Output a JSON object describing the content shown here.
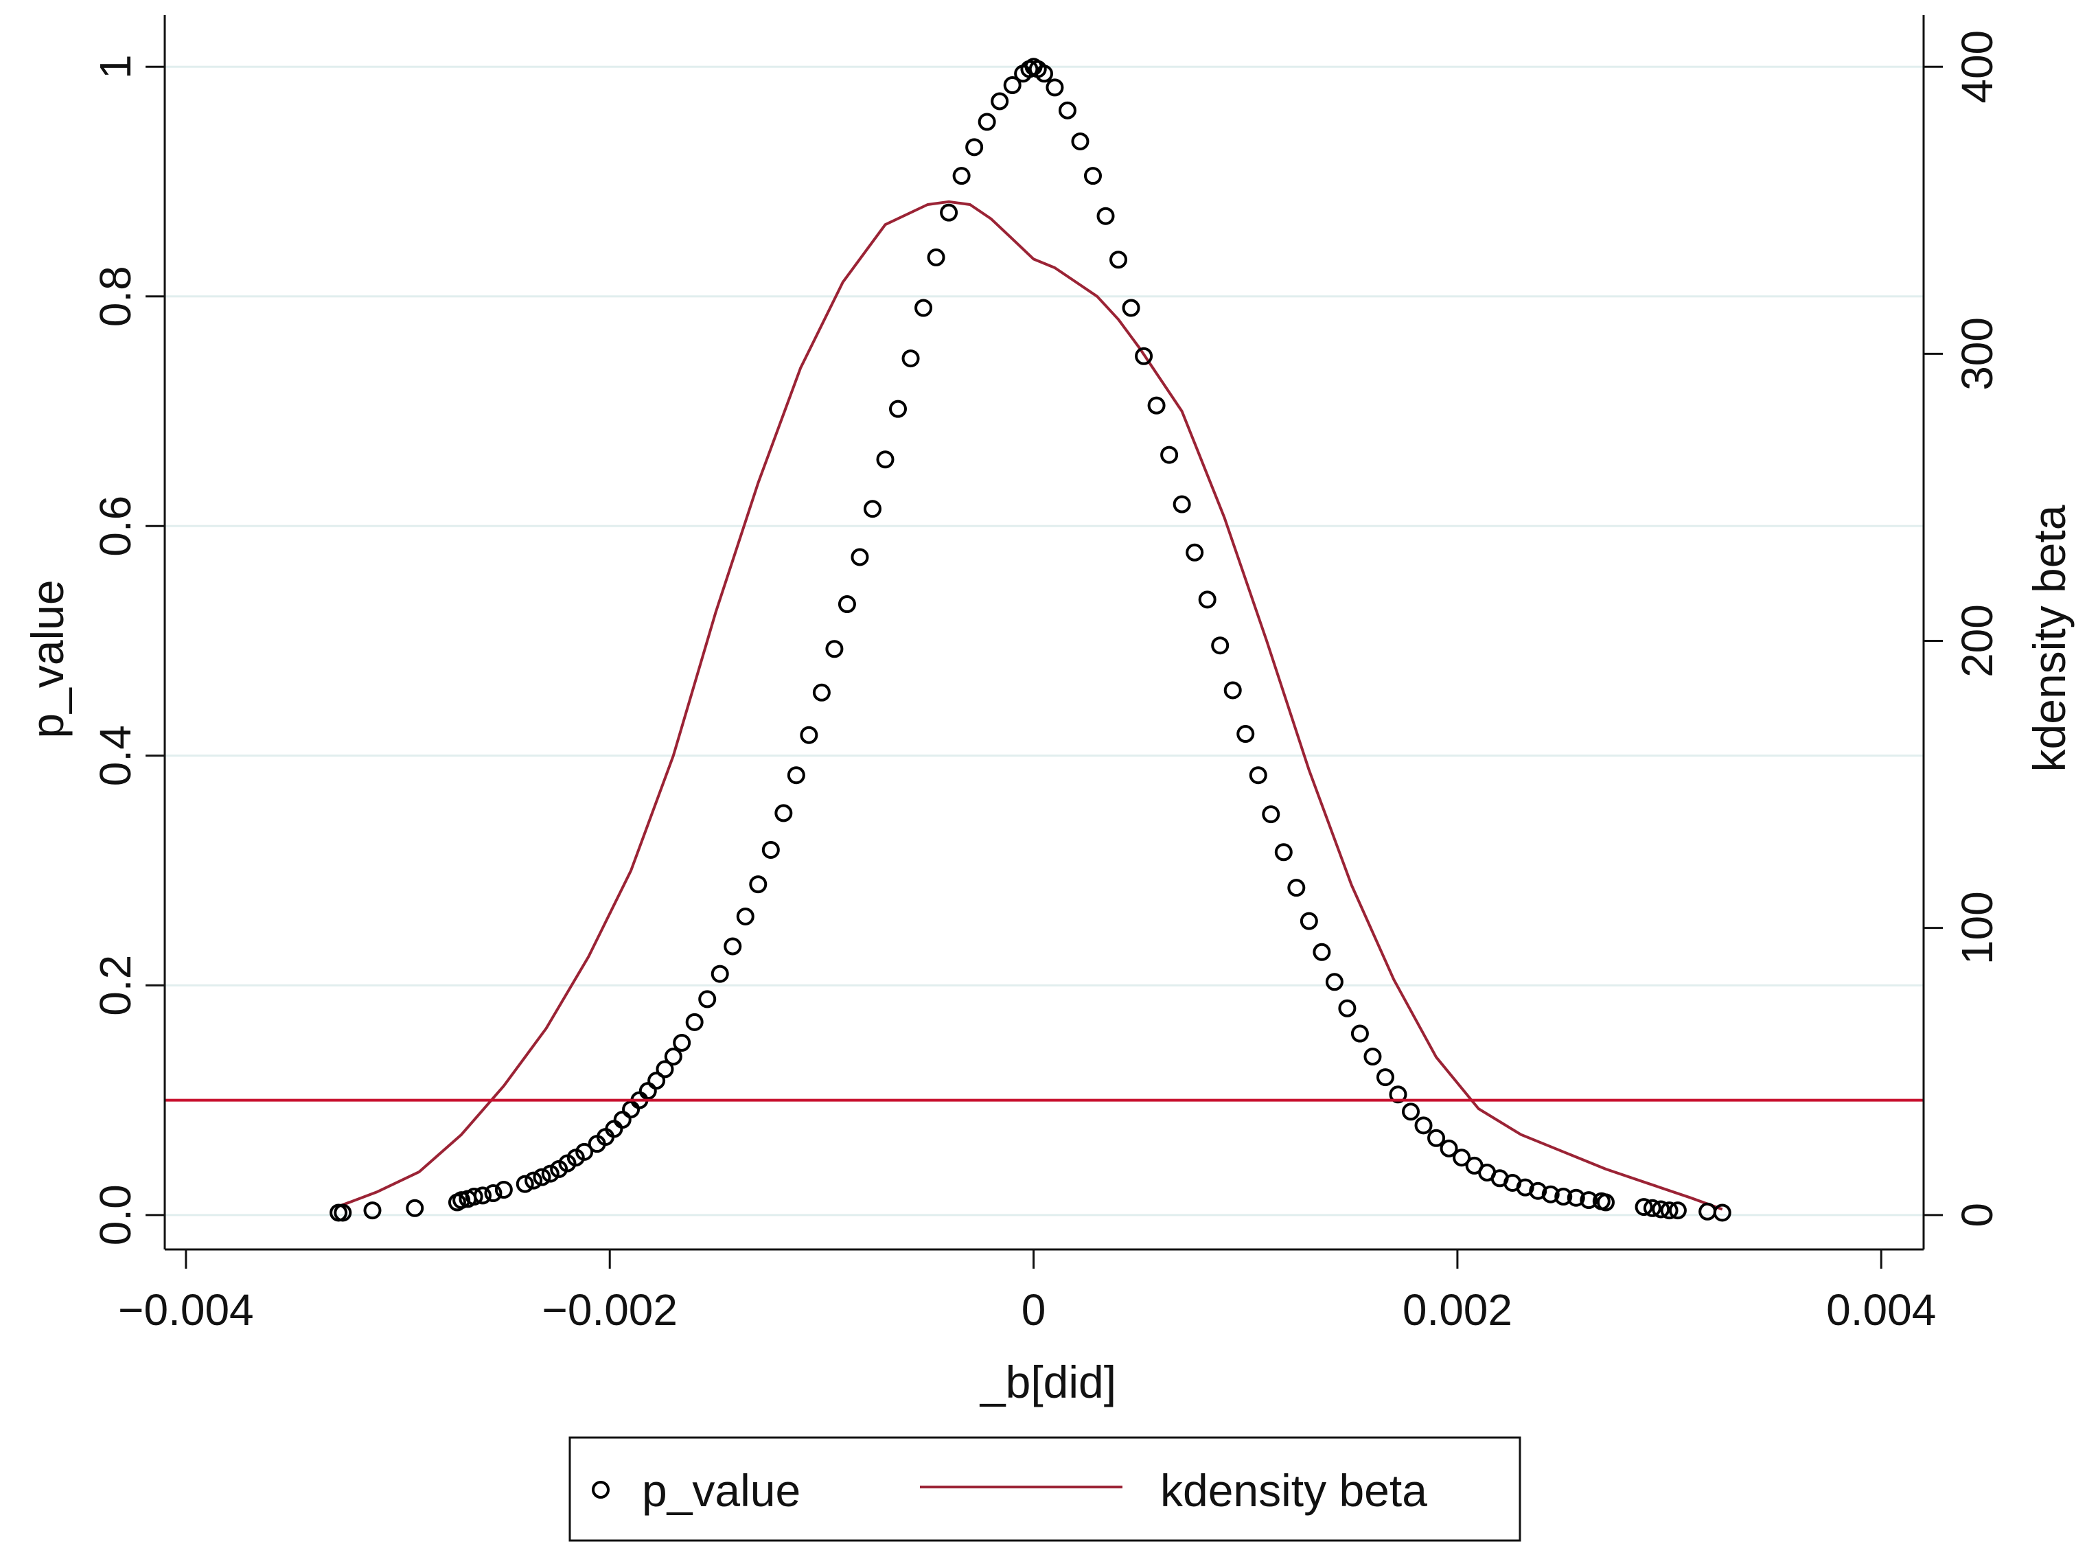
{
  "chart_data": {
    "type": "scatter",
    "xlabel": "_b[did]",
    "ylabel_left": "p_value",
    "ylabel_right": "kdensity beta",
    "xlim": [
      -0.0041,
      0.0042
    ],
    "ylim_left": [
      -0.03,
      1.045
    ],
    "ylim_right": [
      -12,
      418
    ],
    "x_ticks": [
      -0.004,
      -0.002,
      0,
      0.002,
      0.004
    ],
    "x_tick_labels": [
      "−0.004",
      "−0.002",
      "0",
      "0.002",
      "0.004"
    ],
    "y_left_ticks": [
      0,
      0.2,
      0.4,
      0.6,
      0.8,
      1
    ],
    "y_left_tick_labels": [
      "0.0",
      "0.2",
      "0.4",
      "0.6",
      "0.8",
      "1"
    ],
    "y_right_ticks": [
      0,
      100,
      200,
      300,
      400
    ],
    "y_right_tick_labels": [
      "0",
      "100",
      "200",
      "300",
      "400"
    ],
    "grid": "horizontal at left-axis ticks",
    "reference_line": {
      "axis": "left",
      "y": 0.1,
      "color": "#c8102e"
    },
    "colors": {
      "p_value_marker": "#000000",
      "kdensity_line": "#9b2335",
      "gridline": "#e1eeee",
      "frame": "#111111"
    },
    "legend": {
      "position": "bottom-center",
      "entries": [
        "p_value",
        "kdensity beta"
      ]
    },
    "series": [
      {
        "name": "p_value",
        "axis": "left",
        "marker": "hollow-circle",
        "x": [
          -0.00328,
          -0.00326,
          -0.00312,
          -0.00292,
          -0.00272,
          -0.0027,
          -0.00267,
          -0.00264,
          -0.0026,
          -0.00255,
          -0.0025,
          -0.0024,
          -0.00236,
          -0.00232,
          -0.00228,
          -0.00224,
          -0.0022,
          -0.00216,
          -0.00212,
          -0.00206,
          -0.00202,
          -0.00198,
          -0.00194,
          -0.0019,
          -0.00186,
          -0.00182,
          -0.00178,
          -0.00174,
          -0.0017,
          -0.00166,
          -0.0016,
          -0.00154,
          -0.00148,
          -0.00142,
          -0.00136,
          -0.0013,
          -0.00124,
          -0.00118,
          -0.00112,
          -0.00106,
          -0.001,
          -0.00094,
          -0.00088,
          -0.00082,
          -0.00076,
          -0.0007,
          -0.00064,
          -0.00058,
          -0.00052,
          -0.00046,
          -0.0004,
          -0.00034,
          -0.00028,
          -0.00022,
          -0.00016,
          -0.0001,
          -5e-05,
          -2e-05,
          0,
          2e-05,
          5e-05,
          0.0001,
          0.00016,
          0.00022,
          0.00028,
          0.00034,
          0.0004,
          0.00046,
          0.00052,
          0.00058,
          0.00064,
          0.0007,
          0.00076,
          0.00082,
          0.00088,
          0.00094,
          0.001,
          0.00106,
          0.00112,
          0.00118,
          0.00124,
          0.0013,
          0.00136,
          0.00142,
          0.00148,
          0.00154,
          0.0016,
          0.00166,
          0.00172,
          0.00178,
          0.00184,
          0.0019,
          0.00196,
          0.00202,
          0.00208,
          0.00214,
          0.0022,
          0.00226,
          0.00232,
          0.00238,
          0.00244,
          0.0025,
          0.00256,
          0.00262,
          0.00268,
          0.0027,
          0.00288,
          0.00292,
          0.00296,
          0.003,
          0.00304,
          0.00318,
          0.00325
        ],
        "y": [
          0.002,
          0.002,
          0.004,
          0.006,
          0.011,
          0.013,
          0.014,
          0.016,
          0.017,
          0.019,
          0.022,
          0.027,
          0.03,
          0.033,
          0.036,
          0.04,
          0.045,
          0.05,
          0.055,
          0.062,
          0.068,
          0.075,
          0.083,
          0.092,
          0.1,
          0.108,
          0.117,
          0.127,
          0.138,
          0.15,
          0.168,
          0.188,
          0.21,
          0.234,
          0.26,
          0.288,
          0.318,
          0.35,
          0.383,
          0.418,
          0.455,
          0.493,
          0.532,
          0.573,
          0.615,
          0.658,
          0.702,
          0.746,
          0.79,
          0.834,
          0.873,
          0.905,
          0.93,
          0.952,
          0.97,
          0.984,
          0.994,
          0.998,
          1.0,
          0.998,
          0.994,
          0.982,
          0.962,
          0.935,
          0.905,
          0.87,
          0.832,
          0.79,
          0.748,
          0.705,
          0.662,
          0.619,
          0.577,
          0.536,
          0.496,
          0.457,
          0.419,
          0.383,
          0.349,
          0.316,
          0.285,
          0.256,
          0.229,
          0.203,
          0.18,
          0.158,
          0.138,
          0.12,
          0.105,
          0.09,
          0.078,
          0.067,
          0.058,
          0.05,
          0.043,
          0.037,
          0.032,
          0.028,
          0.024,
          0.021,
          0.018,
          0.016,
          0.015,
          0.013,
          0.012,
          0.011,
          0.007,
          0.006,
          0.005,
          0.004,
          0.004,
          0.003,
          0.002
        ]
      },
      {
        "name": "kdensity beta",
        "axis": "right",
        "type": "line",
        "x": [
          -0.00328,
          -0.0031,
          -0.0029,
          -0.0027,
          -0.0025,
          -0.0023,
          -0.0021,
          -0.0019,
          -0.0017,
          -0.0015,
          -0.0013,
          -0.0011,
          -0.0009,
          -0.0007,
          -0.0005,
          -0.0004,
          -0.0003,
          -0.0002,
          -0.0001,
          0,
          0.0001,
          0.0002,
          0.0003,
          0.0004,
          0.0005,
          0.0007,
          0.0009,
          0.0011,
          0.0013,
          0.0015,
          0.0017,
          0.0019,
          0.0021,
          0.0023,
          0.0025,
          0.0027,
          0.0029,
          0.0031,
          0.00325
        ],
        "y": [
          3,
          8,
          15,
          28,
          45,
          65,
          90,
          120,
          160,
          210,
          255,
          295,
          325,
          345,
          352,
          353,
          352,
          347,
          340,
          333,
          330,
          325,
          320,
          312,
          302,
          280,
          243,
          200,
          155,
          115,
          82,
          55,
          37,
          28,
          22,
          16,
          11,
          6,
          2
        ]
      }
    ]
  }
}
